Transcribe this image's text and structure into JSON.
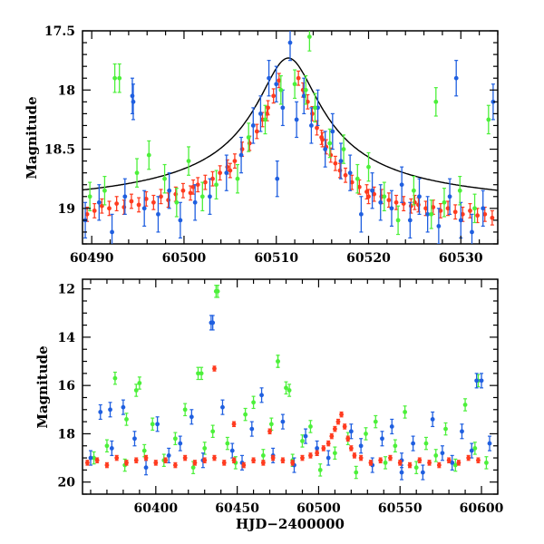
{
  "colors": {
    "red": "#ff3b1f",
    "blue": "#1f5fe0",
    "green": "#4cf03a",
    "model": "#000000"
  },
  "chart_data": [
    {
      "type": "scatter",
      "panel": "top",
      "title": "",
      "xlabel": "",
      "ylabel": "Magnitude",
      "xlim": [
        60489,
        60534
      ],
      "ylim": [
        19.3,
        17.5
      ],
      "y_inverted": true,
      "xticks": [
        60490,
        60500,
        60510,
        60520,
        60530
      ],
      "xtick_labels": [
        "60490",
        "60500",
        "60510",
        "60520",
        "60530"
      ],
      "yticks": [
        17.5,
        18,
        18.5,
        19
      ],
      "ytick_labels": [
        "17.5",
        "18",
        "18.5",
        "19"
      ],
      "grid": false,
      "legend": "none",
      "model_curve": {
        "type": "line",
        "t0": 60511.3,
        "peak_mag": 17.73,
        "baseline_mag": 19.04
      },
      "series": [
        {
          "color": "red",
          "x": [
            60489.5,
            60490.3,
            60491.1,
            60491.9,
            60492.7,
            60493.5,
            60494.3,
            60495.1,
            60495.9,
            60496.7,
            60497.5,
            60498.3,
            60499.1,
            60499.9,
            60500.7,
            60501.5,
            60502.3,
            60503.1,
            60503.9,
            60504.7,
            60505.5,
            60506.3,
            60507.1,
            60507.9,
            60508.5,
            60509.1,
            60509.7,
            60510.3,
            60512.4,
            60512.9,
            60513.4,
            60513.9,
            60514.4,
            60514.9,
            60515.4,
            60515.9,
            60516.4,
            60516.9,
            60517.5,
            60518.2,
            60519.0,
            60519.8,
            60520.6,
            60521.4,
            60522.2,
            60523.0,
            60523.8,
            60524.6,
            60525.4,
            60526.2,
            60527.0,
            60527.8,
            60528.6,
            60529.4,
            60530.2,
            60531.0,
            60531.8,
            60532.6,
            60533.4,
            60501.0,
            60505.0,
            60509.0,
            60515.0,
            60520.0,
            60525.0
          ],
          "y": [
            19.05,
            19.02,
            18.98,
            19.0,
            18.96,
            18.99,
            18.94,
            18.97,
            18.92,
            18.95,
            18.9,
            18.93,
            18.88,
            18.85,
            18.87,
            18.8,
            18.78,
            18.75,
            18.7,
            18.65,
            18.6,
            18.5,
            18.45,
            18.35,
            18.25,
            18.15,
            18.05,
            17.92,
            17.9,
            18.0,
            18.1,
            18.2,
            18.32,
            18.4,
            18.48,
            18.55,
            18.62,
            18.68,
            18.72,
            18.78,
            18.82,
            18.86,
            18.88,
            18.9,
            18.93,
            18.95,
            18.96,
            18.98,
            18.97,
            19.0,
            18.99,
            19.02,
            19.0,
            19.03,
            19.05,
            19.02,
            19.06,
            19.05,
            19.08,
            18.82,
            18.68,
            18.2,
            18.42,
            18.9,
            18.95
          ],
          "yerr": 0.06
        },
        {
          "color": "blue",
          "x": [
            60489.3,
            60490.8,
            60492.2,
            60493.6,
            60494.5,
            60495.7,
            60497.2,
            60498.4,
            60499.6,
            60501.2,
            60502.8,
            60504.6,
            60506.2,
            60507.5,
            60508.3,
            60509.2,
            60510.0,
            60510.7,
            60511.5,
            60512.2,
            60513.0,
            60513.8,
            60514.5,
            60515.3,
            60516.1,
            60517.0,
            60518.0,
            60519.2,
            60520.4,
            60521.3,
            60522.5,
            60523.6,
            60524.5,
            60525.5,
            60526.4,
            60527.6,
            60528.8,
            60530.0,
            60531.2,
            60532.4,
            60533.5,
            60494.4,
            60510.1,
            60529.5
          ],
          "y": [
            19.1,
            18.95,
            19.2,
            18.9,
            18.1,
            19.0,
            19.05,
            18.85,
            19.1,
            18.95,
            18.9,
            18.7,
            18.55,
            18.3,
            18.2,
            17.9,
            17.95,
            18.15,
            17.6,
            18.25,
            18.05,
            18.3,
            18.15,
            18.5,
            18.35,
            18.6,
            18.7,
            19.05,
            18.85,
            18.95,
            19.0,
            18.8,
            19.1,
            18.9,
            19.05,
            19.15,
            18.9,
            19.1,
            19.2,
            19.0,
            18.1,
            18.05,
            18.75,
            17.9
          ],
          "yerr": 0.15
        },
        {
          "color": "green",
          "x": [
            60489.8,
            60491.4,
            60493.0,
            60494.9,
            60496.2,
            60497.9,
            60499.2,
            60500.5,
            60502.0,
            60503.5,
            60505.8,
            60507.0,
            60508.8,
            60510.5,
            60512.0,
            60513.2,
            60514.2,
            60515.8,
            60517.3,
            60518.8,
            60520.0,
            60521.7,
            60523.2,
            60524.9,
            60526.8,
            60528.2,
            60529.9,
            60531.5,
            60533.0,
            60492.5,
            60513.6,
            60527.3
          ],
          "y": [
            18.9,
            18.85,
            17.9,
            18.7,
            18.55,
            18.75,
            18.95,
            18.6,
            18.9,
            18.8,
            18.75,
            18.4,
            18.25,
            18.0,
            17.95,
            18.0,
            18.15,
            18.45,
            18.5,
            18.75,
            18.65,
            18.9,
            19.1,
            18.85,
            19.05,
            18.95,
            18.85,
            19.0,
            18.25,
            17.9,
            17.55,
            18.1
          ],
          "yerr": 0.12
        }
      ]
    },
    {
      "type": "scatter",
      "panel": "bottom",
      "title": "",
      "xlabel": "HJD−2400000",
      "ylabel": "Magnitude",
      "xlim": [
        60355,
        60610
      ],
      "ylim": [
        20.5,
        11.6
      ],
      "y_inverted": true,
      "xticks": [
        60400,
        60450,
        60500,
        60550,
        60600
      ],
      "xtick_labels": [
        "60400",
        "60450",
        "60500",
        "60550",
        "60600"
      ],
      "yticks": [
        12,
        14,
        16,
        18,
        20
      ],
      "ytick_labels": [
        "12",
        "14",
        "16",
        "18",
        "20"
      ],
      "grid": false,
      "legend": "none",
      "series": [
        {
          "color": "green",
          "x": [
            60362,
            60370,
            60375,
            60381,
            60388,
            60393,
            60398,
            60405,
            60412,
            60418,
            60423,
            60426,
            60430,
            60435,
            60438,
            60444,
            60449,
            60455,
            60460,
            60466,
            60471,
            60475,
            60480,
            60484,
            60490,
            60495,
            60501,
            60510,
            60518,
            60523,
            60529,
            60535,
            60541,
            60547,
            60553,
            60560,
            60566,
            60572,
            60578,
            60584,
            60590,
            60596,
            60603,
            60437,
            60475,
            60482,
            60390,
            60428,
            60598,
            60382
          ],
          "y": [
            19.0,
            18.5,
            15.7,
            19.3,
            16.2,
            18.7,
            17.6,
            19.1,
            18.2,
            17.0,
            19.4,
            15.5,
            18.6,
            17.9,
            12.1,
            18.4,
            19.2,
            17.2,
            16.7,
            18.9,
            17.6,
            15.0,
            16.1,
            19.1,
            18.3,
            17.7,
            19.5,
            18.8,
            18.2,
            19.6,
            18.0,
            17.5,
            19.2,
            18.5,
            17.1,
            19.4,
            18.4,
            18.9,
            17.8,
            19.3,
            16.8,
            18.6,
            19.2,
            12.1,
            15.0,
            16.2,
            15.9,
            15.5,
            15.8,
            17.4
          ],
          "yerr": 0.25
        },
        {
          "color": "blue",
          "x": [
            60360,
            60366,
            60373,
            60380,
            60387,
            60394,
            60401,
            60408,
            60415,
            60422,
            60429,
            60434,
            60441,
            60447,
            60453,
            60459,
            60465,
            60472,
            60478,
            60485,
            60492,
            60499,
            60506,
            60520,
            60526,
            60533,
            60539,
            60545,
            60551,
            60558,
            60564,
            60570,
            60576,
            60582,
            60588,
            60594,
            60600,
            60605,
            60435,
            60372,
            60597,
            60551
          ],
          "y": [
            19.0,
            17.1,
            18.6,
            16.9,
            18.2,
            19.4,
            17.6,
            18.9,
            18.4,
            17.3,
            19.1,
            13.4,
            16.9,
            18.7,
            19.2,
            17.8,
            16.4,
            18.9,
            17.5,
            19.3,
            18.1,
            18.6,
            19.0,
            17.9,
            18.5,
            19.3,
            18.2,
            17.7,
            19.1,
            18.4,
            19.6,
            17.4,
            18.8,
            19.2,
            17.9,
            18.7,
            15.8,
            18.4,
            13.4,
            17.0,
            15.8,
            19.6
          ],
          "yerr": 0.3
        },
        {
          "color": "red",
          "x": [
            60358,
            60364,
            60370,
            60376,
            60382,
            60388,
            60394,
            60400,
            60406,
            60412,
            60418,
            60424,
            60430,
            60436,
            60442,
            60448,
            60454,
            60460,
            60466,
            60472,
            60478,
            60484,
            60490,
            60495,
            60499,
            60503,
            60506,
            60508,
            60510,
            60512,
            60514,
            60516,
            60518,
            60520,
            60522,
            60526,
            60532,
            60538,
            60544,
            60550,
            60556,
            60562,
            60568,
            60574,
            60580,
            60586,
            60592,
            60598,
            60436,
            60448,
            60470
          ],
          "y": [
            19.2,
            19.1,
            19.3,
            19.0,
            19.2,
            19.1,
            19.0,
            19.2,
            19.1,
            19.3,
            19.0,
            19.2,
            19.1,
            19.0,
            19.2,
            19.1,
            19.3,
            19.1,
            19.2,
            19.0,
            19.1,
            19.2,
            19.0,
            18.9,
            18.8,
            18.6,
            18.4,
            18.1,
            17.8,
            17.5,
            17.2,
            17.7,
            18.2,
            18.6,
            18.9,
            19.0,
            19.2,
            19.1,
            19.0,
            19.2,
            19.3,
            19.1,
            19.2,
            19.3,
            19.1,
            19.2,
            19.0,
            19.1,
            15.3,
            17.6,
            17.9
          ],
          "yerr": 0.1
        }
      ]
    }
  ]
}
